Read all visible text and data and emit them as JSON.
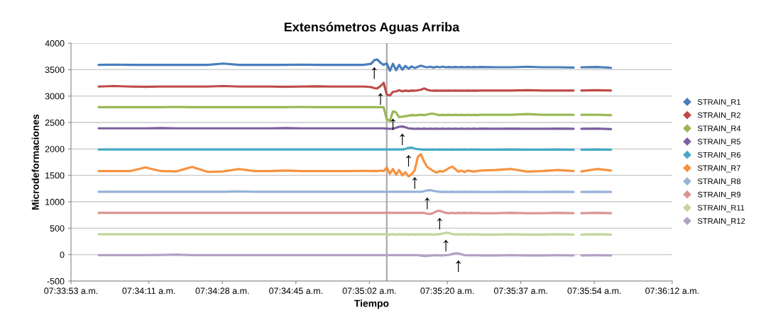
{
  "chart_data": {
    "type": "line",
    "title": "Extensómetros Aguas Arriba",
    "xlabel": "Tiempo",
    "ylabel": "Microdeformaciones",
    "x": [
      7.5665,
      7.5675,
      7.5685,
      7.5695,
      7.5705,
      7.5715,
      7.5725,
      7.5735,
      7.5745,
      7.5755,
      7.5765,
      7.5775,
      7.5785,
      7.5795,
      7.5805,
      7.5815,
      7.5825,
      7.5835,
      7.584,
      7.5842,
      7.5844,
      7.5846,
      7.5848,
      7.585,
      7.5852,
      7.5854,
      7.5856,
      7.5858,
      7.586,
      7.5862,
      7.5864,
      7.5866,
      7.5868,
      7.587,
      7.5872,
      7.5874,
      7.5876,
      7.5878,
      7.588,
      7.5882,
      7.5884,
      7.5886,
      7.5888,
      7.589,
      7.5892,
      7.5894,
      7.5896,
      7.5898,
      7.59,
      7.5902,
      7.5904,
      7.5906,
      7.5908,
      7.591,
      7.592,
      7.593,
      7.594,
      7.595,
      7.596,
      7.597,
      7.5972,
      7.5975,
      7.5985,
      7.5994
    ],
    "series": [
      {
        "name": "STRAIN_R1",
        "color": "#4a7ebb",
        "values": [
          3590,
          3595,
          3590,
          3590,
          3590,
          3590,
          3590,
          3590,
          3615,
          3590,
          3590,
          3590,
          3590,
          3595,
          3590,
          3590,
          3590,
          3590,
          3610,
          3680,
          3690,
          3630,
          3590,
          3620,
          3480,
          3610,
          3490,
          3590,
          3500,
          3570,
          3520,
          3560,
          3530,
          3555,
          3575,
          3555,
          3545,
          3555,
          3540,
          3555,
          3545,
          3555,
          3545,
          3550,
          3545,
          3550,
          3545,
          3550,
          3545,
          3550,
          3545,
          3550,
          3545,
          3550,
          3545,
          3545,
          3555,
          3545,
          3545,
          3540,
          null,
          3545,
          3550,
          3535
        ]
      },
      {
        "name": "STRAIN_R2",
        "color": "#be4b48",
        "values": [
          3180,
          3190,
          3180,
          3175,
          3180,
          3180,
          3180,
          3180,
          3190,
          3180,
          3180,
          3180,
          3175,
          3180,
          3185,
          3180,
          3180,
          3180,
          3170,
          3150,
          3145,
          3190,
          3250,
          3030,
          3010,
          3080,
          3090,
          3110,
          3090,
          3105,
          3095,
          3105,
          3100,
          3110,
          3120,
          3145,
          3120,
          3105,
          3100,
          3105,
          3100,
          3105,
          3100,
          3105,
          3100,
          3105,
          3100,
          3105,
          3100,
          3105,
          3100,
          3105,
          3100,
          3105,
          3105,
          3105,
          3110,
          3105,
          3105,
          3105,
          null,
          3105,
          3110,
          3105
        ]
      },
      {
        "name": "STRAIN_R4",
        "color": "#98b954",
        "values": [
          2790,
          2790,
          2790,
          2790,
          2790,
          2795,
          2790,
          2790,
          2790,
          2790,
          2790,
          2790,
          2790,
          2795,
          2790,
          2790,
          2790,
          2790,
          2790,
          2790,
          2790,
          2790,
          2790,
          2560,
          2530,
          2710,
          2690,
          2600,
          2610,
          2620,
          2630,
          2640,
          2635,
          2640,
          2645,
          2640,
          2650,
          2665,
          2665,
          2650,
          2640,
          2645,
          2640,
          2645,
          2640,
          2645,
          2640,
          2645,
          2640,
          2645,
          2640,
          2645,
          2640,
          2645,
          2645,
          2645,
          2660,
          2645,
          2645,
          2645,
          null,
          2645,
          2645,
          2640
        ]
      },
      {
        "name": "STRAIN_R5",
        "color": "#7d60a0",
        "values": [
          2390,
          2390,
          2390,
          2390,
          2395,
          2390,
          2390,
          2390,
          2390,
          2390,
          2390,
          2390,
          2395,
          2390,
          2390,
          2390,
          2390,
          2390,
          2390,
          2390,
          2390,
          2390,
          2390,
          2385,
          2380,
          2385,
          2400,
          2420,
          2425,
          2410,
          2390,
          2385,
          2380,
          2385,
          2380,
          2385,
          2380,
          2385,
          2380,
          2385,
          2380,
          2385,
          2380,
          2385,
          2380,
          2385,
          2380,
          2385,
          2380,
          2385,
          2380,
          2385,
          2380,
          2385,
          2380,
          2385,
          2380,
          2380,
          2385,
          2380,
          null,
          2380,
          2385,
          2375
        ]
      },
      {
        "name": "STRAIN_R6",
        "color": "#46aac5",
        "values": [
          1990,
          1990,
          1990,
          1990,
          1990,
          1990,
          1990,
          1990,
          1990,
          1990,
          1990,
          1990,
          1990,
          1990,
          1990,
          1990,
          1990,
          1990,
          1990,
          1990,
          1990,
          1990,
          1990,
          1990,
          1990,
          1990,
          1990,
          1990,
          1990,
          2000,
          2020,
          2025,
          2005,
          1995,
          1990,
          1985,
          1990,
          1985,
          1990,
          1985,
          1990,
          1985,
          1990,
          1985,
          1990,
          1985,
          1990,
          1985,
          1990,
          1985,
          1990,
          1985,
          1990,
          1985,
          1985,
          1990,
          1985,
          1985,
          1990,
          1985,
          null,
          1985,
          1990,
          1985
        ]
      },
      {
        "name": "STRAIN_R7",
        "color": "#f69240",
        "values": [
          1580,
          1580,
          1580,
          1650,
          1580,
          1575,
          1660,
          1565,
          1575,
          1620,
          1580,
          1580,
          1590,
          1580,
          1580,
          1580,
          1580,
          1585,
          1580,
          1585,
          1580,
          1590,
          1580,
          1650,
          1530,
          1620,
          1510,
          1600,
          1500,
          1560,
          1480,
          1520,
          1600,
          1850,
          1900,
          1760,
          1660,
          1620,
          1580,
          1550,
          1580,
          1570,
          1600,
          1640,
          1665,
          1620,
          1570,
          1590,
          1560,
          1590,
          1580,
          1570,
          1580,
          1590,
          1600,
          1620,
          1570,
          1580,
          1600,
          1580,
          null,
          1575,
          1620,
          1590
        ]
      },
      {
        "name": "STRAIN_R8",
        "color": "#95b3d7",
        "values": [
          1190,
          1190,
          1190,
          1190,
          1190,
          1190,
          1190,
          1190,
          1190,
          1195,
          1190,
          1190,
          1190,
          1190,
          1190,
          1190,
          1190,
          1190,
          1190,
          1190,
          1190,
          1190,
          1190,
          1190,
          1190,
          1190,
          1190,
          1190,
          1190,
          1190,
          1190,
          1190,
          1190,
          1190,
          1190,
          1200,
          1215,
          1220,
          1205,
          1195,
          1190,
          1185,
          1190,
          1185,
          1190,
          1185,
          1190,
          1185,
          1190,
          1185,
          1190,
          1185,
          1190,
          1185,
          1185,
          1190,
          1185,
          1185,
          1190,
          1185,
          null,
          1185,
          1190,
          1185
        ]
      },
      {
        "name": "STRAIN_R9",
        "color": "#d99694",
        "values": [
          790,
          790,
          790,
          790,
          790,
          790,
          790,
          790,
          790,
          790,
          790,
          790,
          790,
          790,
          790,
          790,
          790,
          790,
          790,
          790,
          790,
          790,
          790,
          790,
          790,
          790,
          790,
          790,
          790,
          790,
          790,
          790,
          790,
          790,
          790,
          790,
          775,
          770,
          790,
          820,
          830,
          810,
          790,
          785,
          790,
          785,
          790,
          785,
          790,
          785,
          790,
          785,
          790,
          785,
          785,
          790,
          785,
          785,
          790,
          785,
          null,
          785,
          790,
          785
        ]
      },
      {
        "name": "STRAIN_R11",
        "color": "#c3d69b",
        "values": [
          385,
          385,
          385,
          385,
          385,
          385,
          385,
          385,
          385,
          385,
          385,
          385,
          385,
          385,
          385,
          385,
          385,
          385,
          385,
          385,
          385,
          385,
          385,
          385,
          380,
          385,
          380,
          385,
          380,
          385,
          380,
          385,
          380,
          385,
          380,
          385,
          380,
          385,
          380,
          385,
          385,
          400,
          415,
          410,
          390,
          380,
          385,
          380,
          385,
          380,
          385,
          380,
          385,
          380,
          380,
          385,
          380,
          380,
          385,
          380,
          null,
          380,
          385,
          380
        ]
      },
      {
        "name": "STRAIN_R12",
        "color": "#b3a2c7",
        "values": [
          -10,
          -10,
          -10,
          -10,
          -5,
          0,
          -10,
          -10,
          -10,
          -10,
          -10,
          -10,
          -10,
          -10,
          -10,
          -10,
          -10,
          -10,
          -10,
          -10,
          -10,
          -10,
          -10,
          -10,
          -10,
          -10,
          -10,
          -10,
          -10,
          -10,
          -10,
          -10,
          -10,
          -10,
          -20,
          -25,
          -25,
          -20,
          -15,
          -10,
          -15,
          -15,
          -10,
          -5,
          10,
          25,
          25,
          5,
          -10,
          -15,
          -10,
          -15,
          -10,
          -15,
          -15,
          -10,
          -15,
          -15,
          -10,
          -15,
          null,
          -15,
          -10,
          -15
        ]
      }
    ],
    "annotations": [
      {
        "text": "↑",
        "x": 7.5842,
        "y": 3680
      },
      {
        "text": "↑",
        "x": 7.5846,
        "y": 3190
      },
      {
        "text": "↑",
        "x": 7.5854,
        "y": 2710
      },
      {
        "text": "↑",
        "x": 7.586,
        "y": 2425
      },
      {
        "text": "↑",
        "x": 7.5864,
        "y": 2020
      },
      {
        "text": "↑",
        "x": 7.5868,
        "y": 1600
      },
      {
        "text": "↑",
        "x": 7.5876,
        "y": 1215
      },
      {
        "text": "↑",
        "x": 7.5884,
        "y": 830
      },
      {
        "text": "↑",
        "x": 7.5888,
        "y": 415
      },
      {
        "text": "↑",
        "x": 7.5896,
        "y": 25
      }
    ],
    "ref_lines": [
      {
        "axis": "x",
        "value": 7.585,
        "color": "#a6a6a6"
      }
    ],
    "xlim": [
      7.564722,
      7.603333
    ],
    "xticks": [
      {
        "value": 7.564722,
        "label": "07:33:53 a.m."
      },
      {
        "value": 7.569722,
        "label": "07:34:11 a.m."
      },
      {
        "value": 7.574444,
        "label": "07:34:28 a.m."
      },
      {
        "value": 7.579167,
        "label": "07:34:45 a.m."
      },
      {
        "value": 7.583889,
        "label": "07:35:02 a.m."
      },
      {
        "value": 7.588889,
        "label": "07:35:20 a.m."
      },
      {
        "value": 7.593611,
        "label": "07:35:37 a.m."
      },
      {
        "value": 7.598333,
        "label": "07:35:54 a.m."
      },
      {
        "value": 7.603333,
        "label": "07:36:12 a.m."
      }
    ],
    "ylim": [
      -500,
      4000
    ],
    "yticks": [
      -500,
      0,
      500,
      1000,
      1500,
      2000,
      2500,
      3000,
      3500,
      4000
    ],
    "grid": "y",
    "legend": "right"
  }
}
